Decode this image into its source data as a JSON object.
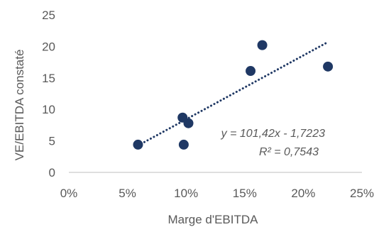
{
  "chart_data": {
    "type": "scatter",
    "xlabel": "Marge d'EBITDA",
    "ylabel": "VE/EBITDA constaté",
    "xlim": [
      0,
      0.25
    ],
    "ylim": [
      0,
      25
    ],
    "x_ticks": [
      0,
      0.05,
      0.1,
      0.15,
      0.2,
      0.25
    ],
    "x_tick_labels": [
      "0%",
      "5%",
      "10%",
      "15%",
      "20%",
      "25%"
    ],
    "y_ticks": [
      0,
      5,
      10,
      15,
      20,
      25
    ],
    "y_tick_labels": [
      "0",
      "5",
      "10",
      "15",
      "20",
      "25"
    ],
    "grid": false,
    "points": [
      {
        "x": 0.059,
        "y": 4.4
      },
      {
        "x": 0.097,
        "y": 8.7
      },
      {
        "x": 0.098,
        "y": 4.4
      },
      {
        "x": 0.102,
        "y": 7.8
      },
      {
        "x": 0.155,
        "y": 16.1
      },
      {
        "x": 0.165,
        "y": 20.2
      },
      {
        "x": 0.221,
        "y": 16.8
      }
    ],
    "trendline": {
      "type": "linear",
      "slope": 101.42,
      "intercept": -1.7223,
      "x_range": [
        0.059,
        0.221
      ],
      "style": "dotted"
    },
    "annotations": [
      "y = 101,42x - 1,7223",
      "R² = 0,7543"
    ],
    "colors": {
      "marker": "#1f3864",
      "trendline": "#1f3864",
      "axis": "#bfbfbf",
      "text": "#595959"
    }
  }
}
